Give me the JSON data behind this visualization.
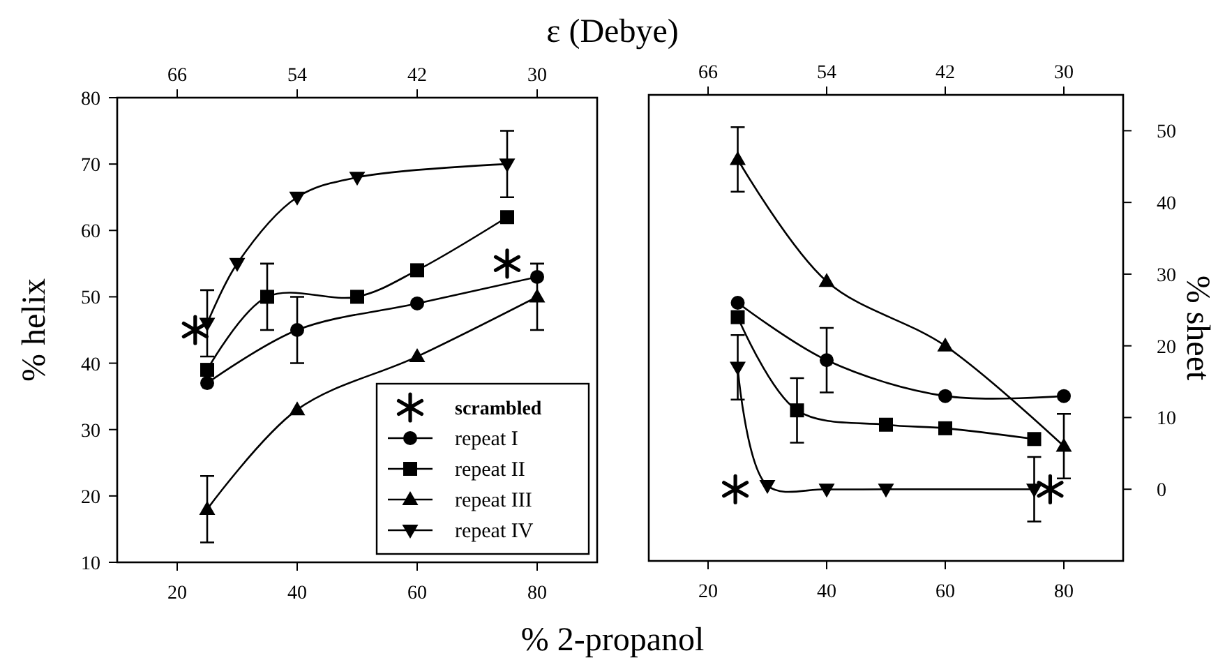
{
  "chart_data": [
    {
      "type": "line",
      "x2label": "ε (Debye)",
      "xlabel": "% 2-propanol",
      "ylabel": "% helix",
      "xlim": [
        10,
        90
      ],
      "xticks": [
        20,
        40,
        60,
        80
      ],
      "x2lim": [
        72,
        24
      ],
      "x2ticks": [
        66,
        54,
        42,
        30
      ],
      "ylim": [
        10,
        80
      ],
      "yticks": [
        10,
        20,
        30,
        40,
        50,
        60,
        70,
        80
      ],
      "legend": "bottom right",
      "grid": false,
      "series": [
        {
          "name": "scrambled",
          "type": "scatter",
          "marker": "cross",
          "color": "#000000",
          "x": [
            23,
            75
          ],
          "values": [
            45,
            55
          ]
        },
        {
          "name": "repeat I",
          "marker": "circle",
          "color": "#000000",
          "x": [
            25,
            40,
            60,
            80
          ],
          "values": [
            37,
            45,
            49,
            53
          ],
          "errors": [
            null,
            5,
            null,
            null
          ]
        },
        {
          "name": "repeat II",
          "marker": "square",
          "color": "#000000",
          "x": [
            25,
            35,
            50,
            60,
            75
          ],
          "values": [
            39,
            50,
            50,
            54,
            62
          ],
          "errors": [
            null,
            5,
            null,
            null,
            null
          ]
        },
        {
          "name": "repeat III",
          "marker": "triangle",
          "color": "#000000",
          "x": [
            25,
            40,
            60,
            80
          ],
          "values": [
            18,
            33,
            41,
            50
          ],
          "errors": [
            5,
            null,
            null,
            5
          ]
        },
        {
          "name": "repeat IV",
          "marker": "triangle-down",
          "color": "#000000",
          "x": [
            25,
            30,
            40,
            50,
            75
          ],
          "values": [
            46,
            55,
            65,
            68,
            70
          ],
          "errors": [
            5,
            null,
            null,
            null,
            5
          ]
        }
      ]
    },
    {
      "type": "line",
      "y2label": "% sheet",
      "xlim": [
        10,
        90
      ],
      "xticks": [
        20,
        40,
        60,
        80
      ],
      "x2lim": [
        72,
        24
      ],
      "x2ticks": [
        66,
        54,
        42,
        30
      ],
      "y2lim": [
        -10,
        55
      ],
      "y2ticks": [
        0,
        10,
        20,
        30,
        40,
        50
      ],
      "grid": false,
      "series": [
        {
          "type": "scatter",
          "marker": "cross",
          "color": "#000000",
          "axis": "y2",
          "x": [
            24.6,
            77.7
          ],
          "values": [
            0,
            0
          ]
        },
        {
          "marker": "circle",
          "color": "#000000",
          "axis": "y2",
          "x": [
            25,
            40,
            60,
            80
          ],
          "values": [
            26,
            18,
            13,
            13
          ],
          "errors": [
            null,
            4.5,
            null,
            null
          ]
        },
        {
          "marker": "square",
          "color": "#000000",
          "axis": "y2",
          "x": [
            25,
            35,
            50,
            60,
            75
          ],
          "values": [
            24,
            11,
            9,
            8.5,
            7
          ],
          "errors": [
            null,
            4.5,
            null,
            null,
            null
          ]
        },
        {
          "marker": "triangle",
          "color": "#000000",
          "axis": "y2",
          "x": [
            25,
            40,
            60,
            80
          ],
          "values": [
            46,
            29,
            20,
            6
          ],
          "errors": [
            4.5,
            null,
            null,
            4.5
          ]
        },
        {
          "marker": "triangle-down",
          "color": "#000000",
          "axis": "y2",
          "x": [
            25,
            30,
            40,
            50,
            75
          ],
          "values": [
            17,
            0.5,
            0,
            0,
            0
          ],
          "errors": [
            4.5,
            null,
            null,
            null,
            4.5
          ]
        }
      ]
    }
  ]
}
